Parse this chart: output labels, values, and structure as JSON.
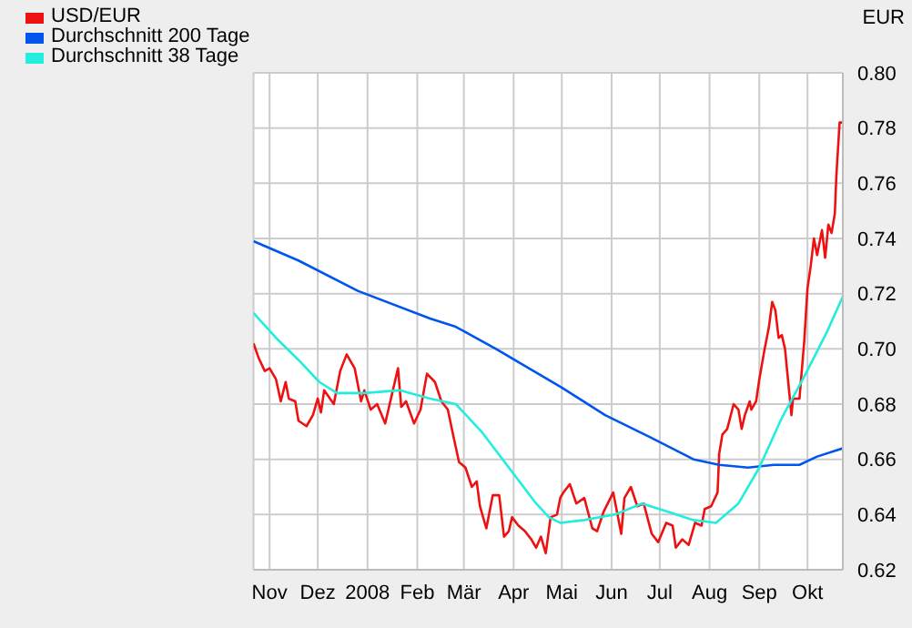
{
  "chart_data": {
    "type": "line",
    "ylabel": "EUR",
    "xlim": [
      "2007-10-22",
      "2008-10-23"
    ],
    "xticks": [
      {
        "value": "2007-11-01",
        "label": "Nov"
      },
      {
        "value": "2007-12-01",
        "label": "Dez"
      },
      {
        "value": "2008-01-01",
        "label": "2008"
      },
      {
        "value": "2008-02-01",
        "label": "Feb"
      },
      {
        "value": "2008-03-01",
        "label": "Mär"
      },
      {
        "value": "2008-04-01",
        "label": "Apr"
      },
      {
        "value": "2008-05-01",
        "label": "Mai"
      },
      {
        "value": "2008-06-01",
        "label": "Jun"
      },
      {
        "value": "2008-07-01",
        "label": "Jul"
      },
      {
        "value": "2008-08-01",
        "label": "Aug"
      },
      {
        "value": "2008-09-01",
        "label": "Sep"
      },
      {
        "value": "2008-10-01",
        "label": "Okt"
      }
    ],
    "ylim": [
      0.62,
      0.8
    ],
    "yticks": [
      {
        "value": 0.62,
        "label": "0.62"
      },
      {
        "value": 0.64,
        "label": "0.64"
      },
      {
        "value": 0.66,
        "label": "0.66"
      },
      {
        "value": 0.68,
        "label": "0.68"
      },
      {
        "value": 0.7,
        "label": "0.70"
      },
      {
        "value": 0.72,
        "label": "0.72"
      },
      {
        "value": 0.74,
        "label": "0.74"
      },
      {
        "value": 0.76,
        "label": "0.76"
      },
      {
        "value": 0.78,
        "label": "0.78"
      },
      {
        "value": 0.8,
        "label": "0.80"
      }
    ],
    "grid": true,
    "legend": "top left",
    "marker": "none",
    "line_style": "solid",
    "series": [
      {
        "name": "USD/EUR",
        "color": "#ee1111",
        "x": [
          "2007-10-22",
          "2007-10-25",
          "2007-10-29",
          "2007-11-01",
          "2007-11-05",
          "2007-11-08",
          "2007-11-11",
          "2007-11-13",
          "2007-11-17",
          "2007-11-19",
          "2007-11-24",
          "2007-11-28",
          "2007-12-01",
          "2007-12-03",
          "2007-12-05",
          "2007-12-11",
          "2007-12-15",
          "2007-12-19",
          "2007-12-24",
          "2007-12-28",
          "2007-12-30",
          "2008-01-03",
          "2008-01-07",
          "2008-01-12",
          "2008-01-16",
          "2008-01-20",
          "2008-01-22",
          "2008-01-25",
          "2008-01-30",
          "2008-02-03",
          "2008-02-07",
          "2008-02-12",
          "2008-02-16",
          "2008-02-20",
          "2008-02-24",
          "2008-02-27",
          "2008-03-02",
          "2008-03-06",
          "2008-03-09",
          "2008-03-11",
          "2008-03-15",
          "2008-03-19",
          "2008-03-23",
          "2008-03-26",
          "2008-03-29",
          "2008-03-31",
          "2008-04-04",
          "2008-04-08",
          "2008-04-12",
          "2008-04-15",
          "2008-04-18",
          "2008-04-21",
          "2008-04-24",
          "2008-04-28",
          "2008-04-30",
          "2008-05-02",
          "2008-05-06",
          "2008-05-10",
          "2008-05-15",
          "2008-05-20",
          "2008-05-23",
          "2008-05-27",
          "2008-06-02",
          "2008-06-07",
          "2008-06-09",
          "2008-06-13",
          "2008-06-17",
          "2008-06-21",
          "2008-06-26",
          "2008-06-30",
          "2008-07-05",
          "2008-07-09",
          "2008-07-11",
          "2008-07-15",
          "2008-07-19",
          "2008-07-23",
          "2008-07-27",
          "2008-07-29",
          "2008-08-02",
          "2008-08-06",
          "2008-08-07",
          "2008-08-09",
          "2008-08-12",
          "2008-08-16",
          "2008-08-19",
          "2008-08-21",
          "2008-08-23",
          "2008-08-26",
          "2008-08-27",
          "2008-08-30",
          "2008-09-01",
          "2008-09-04",
          "2008-09-07",
          "2008-09-09",
          "2008-09-11",
          "2008-09-13",
          "2008-09-15",
          "2008-09-17",
          "2008-09-19",
          "2008-09-21",
          "2008-09-22",
          "2008-09-26",
          "2008-09-29",
          "2008-10-01",
          "2008-10-03",
          "2008-10-05",
          "2008-10-07",
          "2008-10-10",
          "2008-10-12",
          "2008-10-14",
          "2008-10-16",
          "2008-10-18",
          "2008-10-19",
          "2008-10-21",
          "2008-10-23"
        ],
        "values": [
          0.702,
          0.697,
          0.692,
          0.693,
          0.689,
          0.681,
          0.688,
          0.682,
          0.681,
          0.674,
          0.672,
          0.676,
          0.682,
          0.677,
          0.685,
          0.68,
          0.692,
          0.698,
          0.693,
          0.681,
          0.685,
          0.678,
          0.68,
          0.673,
          0.683,
          0.693,
          0.679,
          0.681,
          0.673,
          0.678,
          0.691,
          0.688,
          0.681,
          0.678,
          0.667,
          0.659,
          0.657,
          0.65,
          0.652,
          0.643,
          0.635,
          0.647,
          0.647,
          0.632,
          0.634,
          0.639,
          0.636,
          0.634,
          0.631,
          0.628,
          0.632,
          0.626,
          0.639,
          0.64,
          0.646,
          0.648,
          0.651,
          0.644,
          0.646,
          0.635,
          0.634,
          0.641,
          0.648,
          0.633,
          0.646,
          0.65,
          0.643,
          0.644,
          0.633,
          0.63,
          0.637,
          0.636,
          0.628,
          0.631,
          0.629,
          0.637,
          0.636,
          0.642,
          0.643,
          0.648,
          0.662,
          0.669,
          0.671,
          0.68,
          0.678,
          0.671,
          0.676,
          0.681,
          0.678,
          0.681,
          0.689,
          0.699,
          0.708,
          0.717,
          0.714,
          0.704,
          0.705,
          0.7,
          0.688,
          0.676,
          0.682,
          0.682,
          0.703,
          0.722,
          0.73,
          0.74,
          0.734,
          0.743,
          0.733,
          0.745,
          0.742,
          0.749,
          0.763,
          0.782,
          0.782
        ]
      },
      {
        "name": "Durchschnitt 200 Tage",
        "color": "#0055ee",
        "x": [
          "2007-10-22",
          "2007-11-19",
          "2007-12-26",
          "2008-02-09",
          "2008-02-25",
          "2008-03-21",
          "2008-05-01",
          "2008-05-28",
          "2008-06-25",
          "2008-07-22",
          "2008-08-07",
          "2008-08-25",
          "2008-09-10",
          "2008-09-26",
          "2008-10-07",
          "2008-10-23"
        ],
        "values": [
          0.739,
          0.732,
          0.721,
          0.711,
          0.708,
          0.7,
          0.686,
          0.676,
          0.668,
          0.66,
          0.658,
          0.657,
          0.658,
          0.658,
          0.661,
          0.664
        ]
      },
      {
        "name": "Durchschnitt 38 Tage",
        "color": "#22eedd",
        "x": [
          "2007-10-22",
          "2007-11-05",
          "2007-11-19",
          "2007-12-02",
          "2007-12-13",
          "2007-12-30",
          "2008-01-21",
          "2008-02-09",
          "2008-02-25",
          "2008-03-12",
          "2008-03-29",
          "2008-04-15",
          "2008-04-23",
          "2008-04-30",
          "2008-05-15",
          "2008-06-03",
          "2008-06-20",
          "2008-07-06",
          "2008-07-22",
          "2008-08-05",
          "2008-08-19",
          "2008-09-01",
          "2008-09-15",
          "2008-09-29",
          "2008-10-13",
          "2008-10-23"
        ],
        "values": [
          0.713,
          0.704,
          0.696,
          0.688,
          0.684,
          0.684,
          0.685,
          0.682,
          0.68,
          0.67,
          0.657,
          0.644,
          0.639,
          0.637,
          0.638,
          0.64,
          0.644,
          0.641,
          0.638,
          0.637,
          0.644,
          0.657,
          0.675,
          0.69,
          0.706,
          0.719
        ]
      }
    ]
  }
}
